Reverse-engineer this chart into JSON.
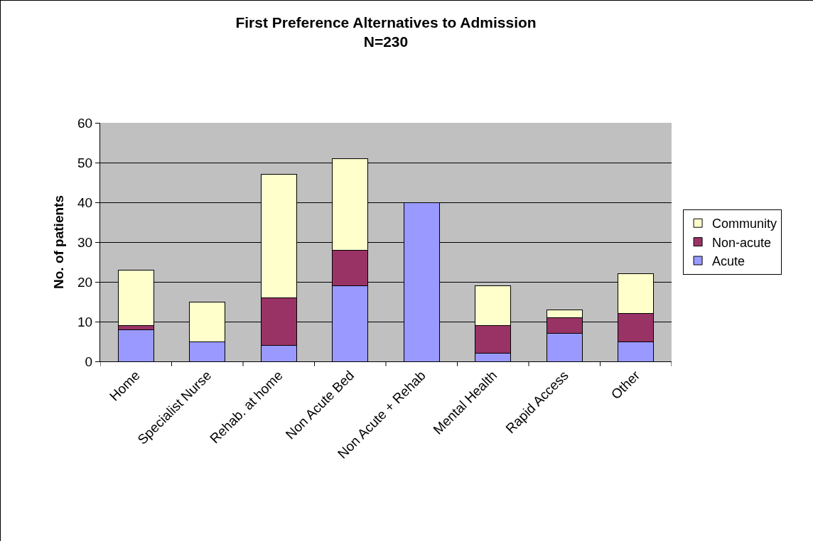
{
  "chart_data": {
    "type": "bar",
    "title": "First Preference Alternatives to Admission",
    "subtitle": "N=230",
    "ylabel": "No. of patients",
    "categories": [
      "Home",
      "Specialist Nurse",
      "Rehab. at home",
      "Non Acute Bed",
      "Non Acute + Rehab",
      "Mental Health",
      "Rapid Access",
      "Other"
    ],
    "series": [
      {
        "name": "Acute",
        "color": "#9999ff",
        "values": [
          8,
          5,
          4,
          19,
          40,
          2,
          7,
          5
        ]
      },
      {
        "name": "Non-acute",
        "color": "#993366",
        "values": [
          1,
          0,
          12,
          9,
          0,
          7,
          4,
          7
        ]
      },
      {
        "name": "Community",
        "color": "#ffffcc",
        "values": [
          14,
          10,
          31,
          23,
          0,
          10,
          2,
          10
        ]
      }
    ],
    "stacked": true,
    "ylim": [
      0,
      60
    ],
    "yticks": [
      0,
      10,
      20,
      30,
      40,
      50,
      60
    ],
    "grid": "y",
    "legend": "right"
  }
}
